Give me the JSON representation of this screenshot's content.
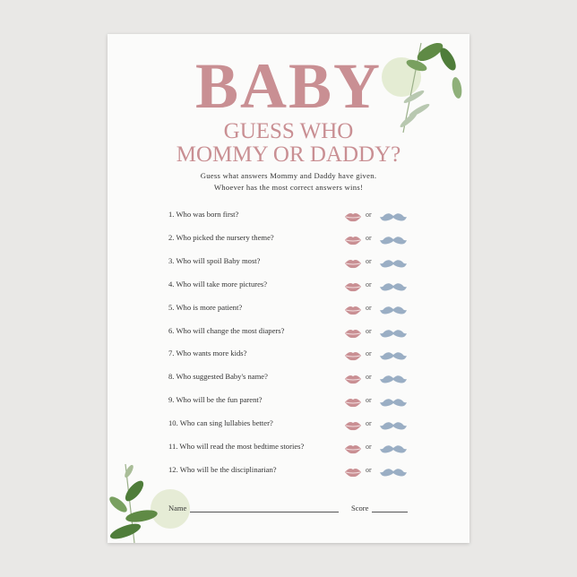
{
  "title": "BABY",
  "subtitle_line1": "GUESS WHO",
  "subtitle_line2": "MOMMY OR DADDY?",
  "instructions_line1": "Guess what answers Mommy and Daddy have given.",
  "instructions_line2": "Whoever has the most correct answers wins!",
  "or_label": "or",
  "questions": [
    "1. Who was born first?",
    "2. Who picked the nursery theme?",
    "3. Who will spoil Baby most?",
    "4. Who will take more pictures?",
    "5. Who is more patient?",
    "6. Who will change the most diapers?",
    "7. Who wants more kids?",
    "8. Who suggested Baby's name?",
    "9. Who will be the fun parent?",
    "10. Who can sing lullabies better?",
    "11. Who will read the most bedtime stories?",
    "12. Who will be the disciplinarian?"
  ],
  "name_label": "Name",
  "score_label": "Score",
  "colors": {
    "pink": "#c98f93",
    "blue": "#9aaec4",
    "green": "#6e9650",
    "background": "#e9e8e6"
  },
  "icons": {
    "mommy": "lips-icon",
    "daddy": "mustache-icon"
  }
}
